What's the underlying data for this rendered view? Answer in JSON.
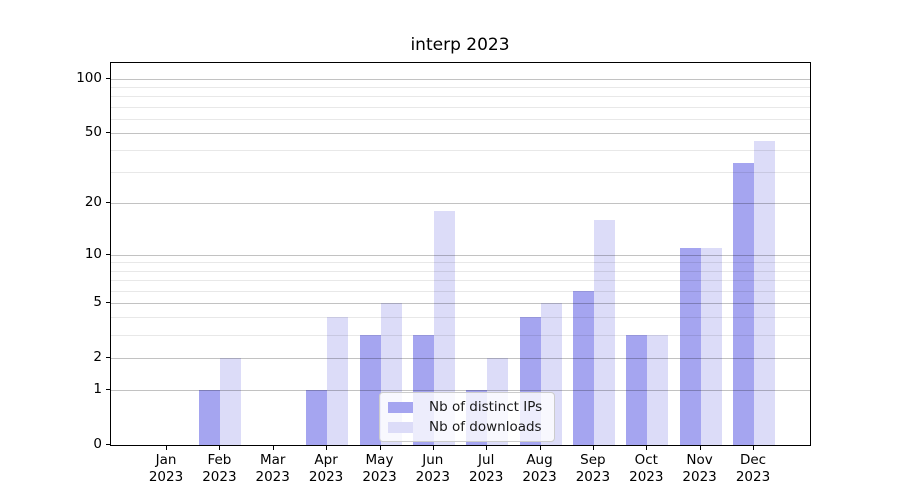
{
  "chart_data": {
    "type": "bar",
    "title": "interp 2023",
    "categories": [
      "Jan\n2023",
      "Feb\n2023",
      "Mar\n2023",
      "Apr\n2023",
      "May\n2023",
      "Jun\n2023",
      "Jul\n2023",
      "Aug\n2023",
      "Sep\n2023",
      "Oct\n2023",
      "Nov\n2023",
      "Dec\n2023"
    ],
    "series": [
      {
        "name": "Nb of distinct IPs",
        "color": "#a5a5f0",
        "values": [
          0,
          1,
          0,
          1,
          3,
          3,
          1,
          4,
          6,
          3,
          11,
          34
        ]
      },
      {
        "name": "Nb of downloads",
        "color": "#dcdcf8",
        "values": [
          0,
          2,
          0,
          4,
          5,
          18,
          2,
          5,
          16,
          3,
          11,
          45
        ]
      }
    ],
    "xlabel": "",
    "ylabel": "",
    "y_scale": "log1p",
    "y_ticks_major": [
      0,
      1,
      2,
      5,
      10,
      20,
      50,
      100
    ],
    "y_ticks_minor": [
      3,
      4,
      6,
      7,
      8,
      9,
      30,
      40,
      60,
      70,
      80,
      90
    ],
    "ylim": [
      0,
      122
    ],
    "grid": true,
    "legend_position": "lower center",
    "colors": {
      "spine": "#000000",
      "grid_major": "rgba(0,0,0,0.24)",
      "grid_minor": "rgba(0,0,0,0.09)",
      "background": "#ffffff"
    }
  }
}
